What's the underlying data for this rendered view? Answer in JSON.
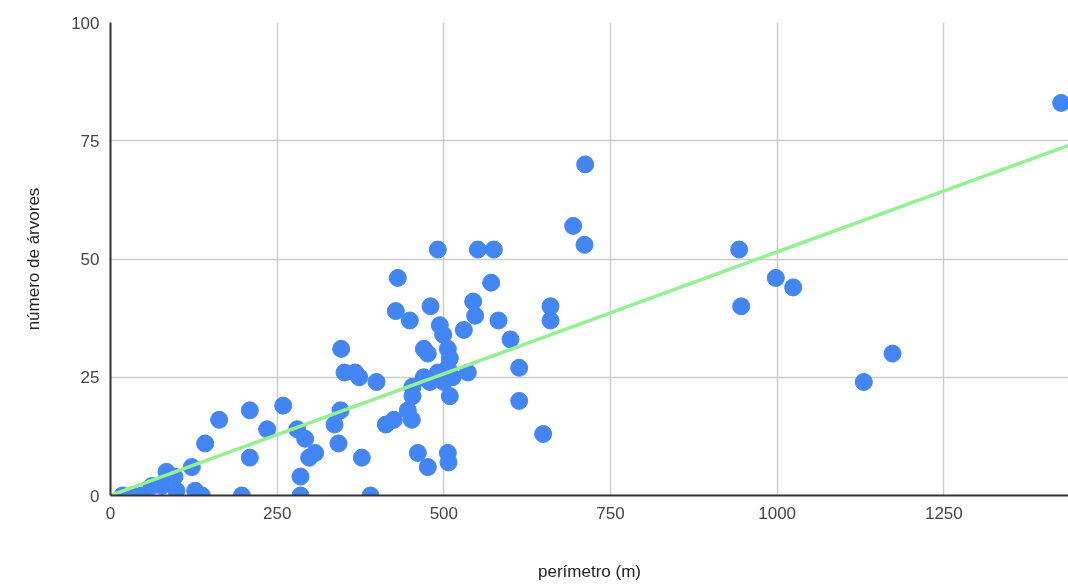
{
  "chart_data": {
    "type": "scatter",
    "xlabel": "perímetro (m)",
    "ylabel": "número de árvores",
    "xlim": [
      0,
      1437
    ],
    "ylim": [
      0,
      100
    ],
    "xticks": [
      0,
      250,
      500,
      750,
      1000,
      1250
    ],
    "yticks": [
      0,
      25,
      50,
      75,
      100
    ],
    "grid": true,
    "marker": "circle",
    "series": [
      {
        "color": "#4285f4",
        "x": [
          18,
          32,
          47,
          62,
          77,
          84,
          96,
          99,
          122,
          127,
          137,
          142,
          163,
          197,
          209,
          209,
          235,
          259,
          280,
          292,
          285,
          285,
          298,
          307,
          336,
          342,
          345,
          346,
          351,
          367,
          373,
          377,
          390,
          399,
          413,
          425,
          428,
          431,
          449,
          446,
          453,
          453,
          452,
          461,
          470,
          476,
          476,
          480,
          491,
          470,
          479,
          491,
          494,
          499,
          500,
          506,
          509,
          506,
          509,
          506,
          507,
          513,
          530,
          536,
          544,
          547,
          551,
          571,
          575,
          582,
          600,
          613,
          613,
          649,
          660,
          660,
          694,
          711,
          712,
          943,
          946,
          998,
          1024,
          1130,
          1173,
          1426
        ],
        "values": [
          0,
          0,
          0,
          2,
          2,
          5,
          4,
          1,
          6,
          1,
          0,
          11,
          16,
          0,
          18,
          8,
          14,
          19,
          14,
          12,
          4,
          0,
          8,
          9,
          15,
          11,
          18,
          31,
          26,
          26,
          25,
          8,
          0,
          24,
          15,
          16,
          39,
          46,
          37,
          18,
          23,
          21,
          16,
          9,
          31,
          30,
          6,
          40,
          52,
          25,
          24,
          26,
          36,
          34,
          24,
          31,
          29,
          27,
          21,
          9,
          7,
          25,
          35,
          26,
          41,
          38,
          52,
          45,
          52,
          37,
          33,
          27,
          20,
          13,
          40,
          37,
          57,
          53,
          70,
          52,
          40,
          46,
          44,
          24,
          30,
          83
        ]
      },
      {
        "type": "line",
        "color": "#93f193",
        "x": [
          0,
          1437
        ],
        "values": [
          0,
          74
        ],
        "marker": "none"
      }
    ]
  }
}
